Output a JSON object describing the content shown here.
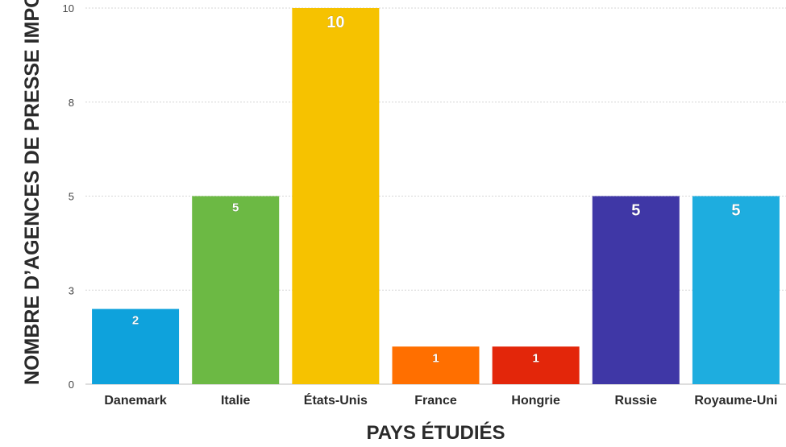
{
  "chart_data": {
    "type": "bar",
    "xlabel": "PAYS ÉTUDIÉS",
    "ylabel": "NOMBRE D’AGENCES DE PRESSE IMPORTANTES",
    "ylim": [
      0,
      10
    ],
    "grid": true,
    "yticks": [
      {
        "value": 0,
        "label": "0"
      },
      {
        "value": 2.5,
        "label": "3"
      },
      {
        "value": 5,
        "label": "5"
      },
      {
        "value": 7.5,
        "label": "8"
      },
      {
        "value": 10,
        "label": "10"
      }
    ],
    "categories": [
      "Danemark",
      "Italie",
      "États-Unis",
      "France",
      "Hongrie",
      "Russie",
      "Royaume-Uni"
    ],
    "values": [
      2,
      5,
      10,
      1,
      1,
      5,
      5
    ],
    "bars": [
      {
        "category": "Danemark",
        "value": 2,
        "label": "2",
        "color": "#0ea2dc"
      },
      {
        "category": "Italie",
        "value": 5,
        "label": "5",
        "color": "#6cb944"
      },
      {
        "category": "États-Unis",
        "value": 10,
        "label": "10",
        "color": "#f6c200"
      },
      {
        "category": "France",
        "value": 1,
        "label": "1",
        "color": "#ff6f00"
      },
      {
        "category": "Hongrie",
        "value": 1,
        "label": "1",
        "color": "#e3260a"
      },
      {
        "category": "Russie",
        "value": 5,
        "label": "5",
        "color": "#3f37a6"
      },
      {
        "category": "Royaume-Uni",
        "value": 5,
        "label": "5",
        "color": "#1eaddf"
      }
    ]
  }
}
